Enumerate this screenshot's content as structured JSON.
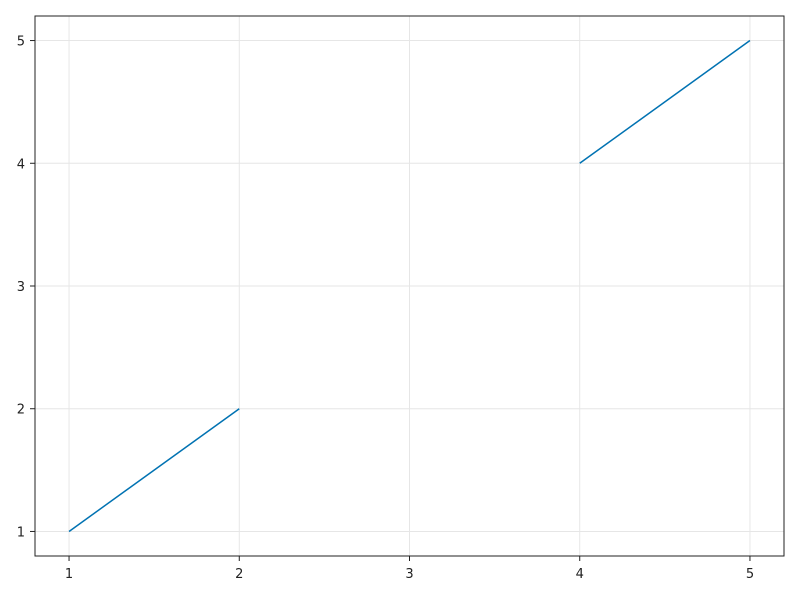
{
  "chart_data": {
    "type": "line",
    "title": "",
    "xlabel": "",
    "ylabel": "",
    "x": [
      1,
      2,
      3,
      4,
      5
    ],
    "series": [
      {
        "values": [
          1,
          2,
          null,
          4,
          5
        ],
        "color": "#0072B2"
      }
    ],
    "xlim": [
      0.8,
      5.2
    ],
    "ylim": [
      0.8,
      5.2
    ],
    "xticks": [
      "1",
      "2",
      "3",
      "4",
      "5"
    ],
    "yticks": [
      "1",
      "2",
      "3",
      "4",
      "5"
    ],
    "grid": true,
    "legend": "none"
  }
}
